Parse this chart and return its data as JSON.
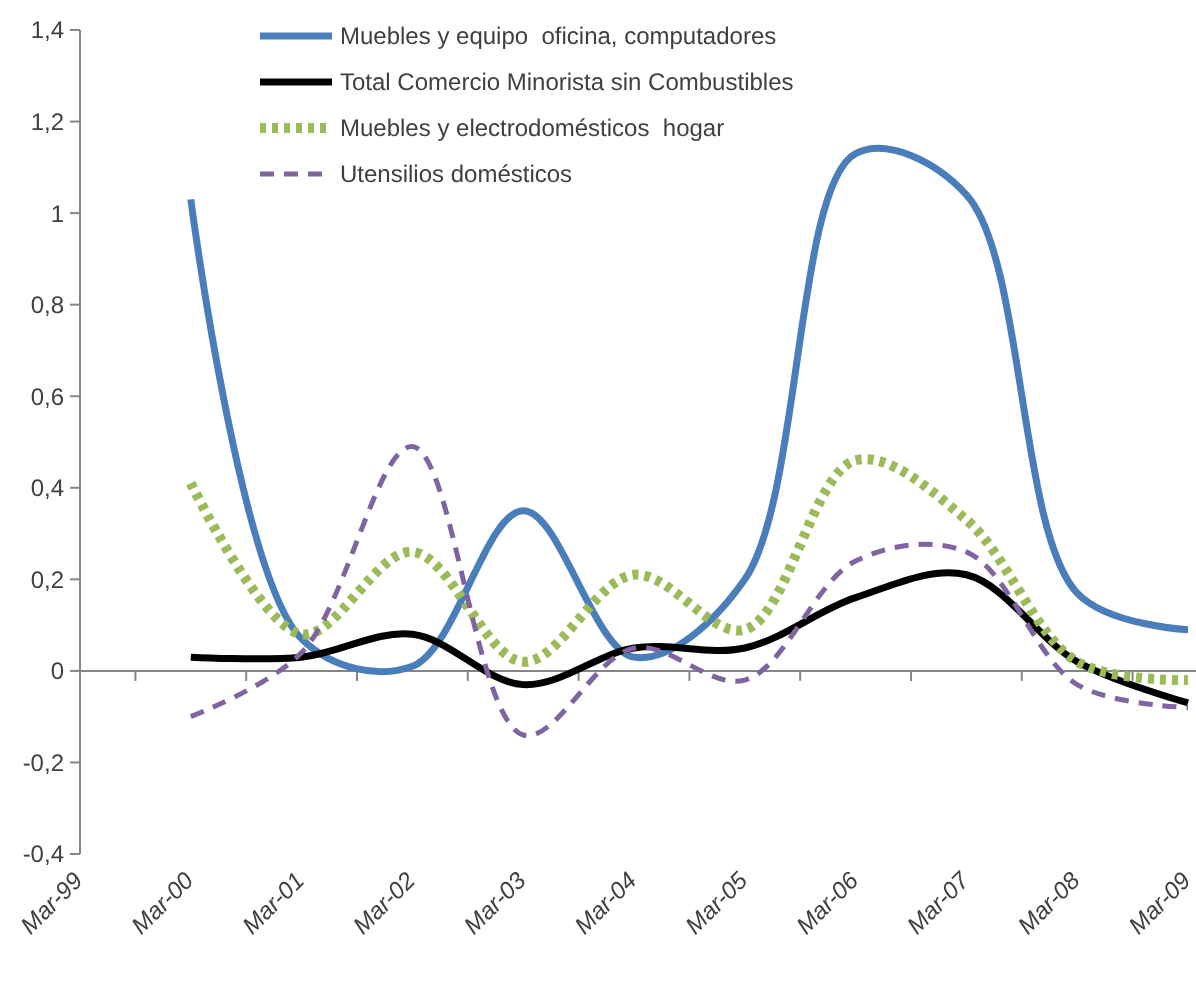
{
  "chart_data": {
    "type": "line",
    "categories": [
      "Mar-99",
      "Mar-00",
      "Mar-01",
      "Mar-02",
      "Mar-03",
      "Mar-04",
      "Mar-05",
      "Mar-06",
      "Mar-07",
      "Mar-08",
      "Mar-09"
    ],
    "series": [
      {
        "name": "Muebles y equipo  oficina, computadores",
        "color": "#4a7ebb",
        "line_style": "solid",
        "values": [
          null,
          1.03,
          0.07,
          0.01,
          0.35,
          0.03,
          0.2,
          1.13,
          1.04,
          0.17,
          0.09
        ]
      },
      {
        "name": "Total Comercio Minorista sin Combustibles",
        "color": "#000000",
        "line_style": "solid",
        "values": [
          null,
          0.03,
          0.03,
          0.08,
          -0.03,
          0.05,
          0.05,
          0.16,
          0.21,
          0.02,
          -0.07
        ]
      },
      {
        "name": "Muebles y electrodomésticos  hogar",
        "color": "#9bbb59",
        "line_style": "dotted",
        "values": [
          null,
          0.41,
          0.08,
          0.26,
          0.02,
          0.21,
          0.09,
          0.46,
          0.33,
          0.02,
          -0.02
        ]
      },
      {
        "name": "Utensilios domésticos",
        "color": "#8064a2",
        "line_style": "dashed",
        "values": [
          null,
          -0.1,
          0.04,
          0.49,
          -0.14,
          0.05,
          -0.02,
          0.24,
          0.26,
          -0.03,
          -0.08
        ]
      }
    ],
    "ylim": [
      -0.4,
      1.4
    ],
    "yticks": [
      {
        "value": -0.4,
        "label": "-0,4"
      },
      {
        "value": -0.2,
        "label": "-0,2"
      },
      0,
      {
        "value": 0.2,
        "label": "0,2"
      },
      {
        "value": 0.4,
        "label": "0,4"
      },
      {
        "value": 0.6,
        "label": "0,6"
      },
      {
        "value": 0.8,
        "label": "0,8"
      },
      1,
      {
        "value": 1.2,
        "label": "1,2"
      },
      {
        "value": 1.4,
        "label": "1,4"
      }
    ],
    "legend": "top",
    "marker": "none"
  }
}
